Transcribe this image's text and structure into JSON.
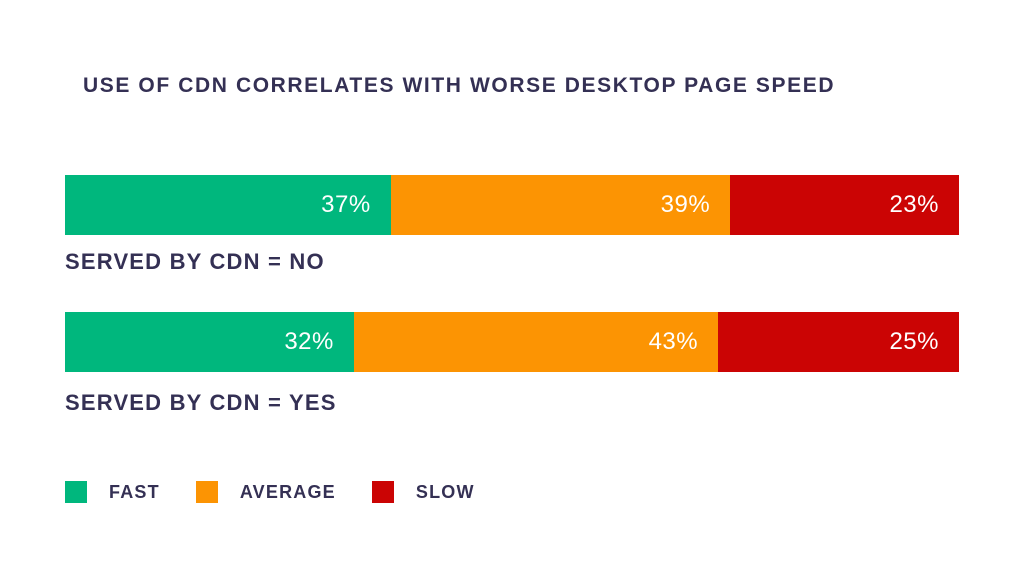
{
  "title": "USE OF CDN CORRELATES WITH WORSE DESKTOP PAGE SPEED",
  "colors": {
    "fast": "#00b77d",
    "average": "#fc9403",
    "slow": "#cb0404",
    "text": "#343054",
    "value_label": "#ffffff",
    "background": "#ffffff"
  },
  "chart_data": {
    "type": "bar",
    "orientation": "horizontal",
    "stacked": true,
    "title": "USE OF CDN CORRELATES WITH WORSE DESKTOP PAGE SPEED",
    "categories": [
      "SERVED BY CDN = NO",
      "SERVED BY CDN = YES"
    ],
    "series": [
      {
        "name": "FAST",
        "color": "#00b77d",
        "values": [
          37,
          32
        ]
      },
      {
        "name": "AVERAGE",
        "color": "#fc9403",
        "values": [
          39,
          43
        ]
      },
      {
        "name": "SLOW",
        "color": "#cb0404",
        "values": [
          23,
          25
        ]
      }
    ],
    "value_format": "percent",
    "value_labels_position": "inside-right",
    "legend_position": "bottom-left",
    "grid": false,
    "rows": [
      {
        "label": "SERVED BY CDN = NO",
        "segments": [
          {
            "name": "FAST",
            "value": 37,
            "display": "37%",
            "color": "#00b77d"
          },
          {
            "name": "AVERAGE",
            "value": 39,
            "display": "39%",
            "color": "#fc9403"
          },
          {
            "name": "SLOW",
            "value": 23,
            "display": "23%",
            "color": "#cb0404"
          }
        ]
      },
      {
        "label": "SERVED BY CDN = YES",
        "segments": [
          {
            "name": "FAST",
            "value": 32,
            "display": "32%",
            "color": "#00b77d"
          },
          {
            "name": "AVERAGE",
            "value": 43,
            "display": "43%",
            "color": "#fc9403"
          },
          {
            "name": "SLOW",
            "value": 25,
            "display": "25%",
            "color": "#cb0404"
          }
        ]
      }
    ],
    "legend": [
      {
        "label": "FAST",
        "color": "#00b77d"
      },
      {
        "label": "AVERAGE",
        "color": "#fc9403"
      },
      {
        "label": "SLOW",
        "color": "#cb0404"
      }
    ]
  }
}
